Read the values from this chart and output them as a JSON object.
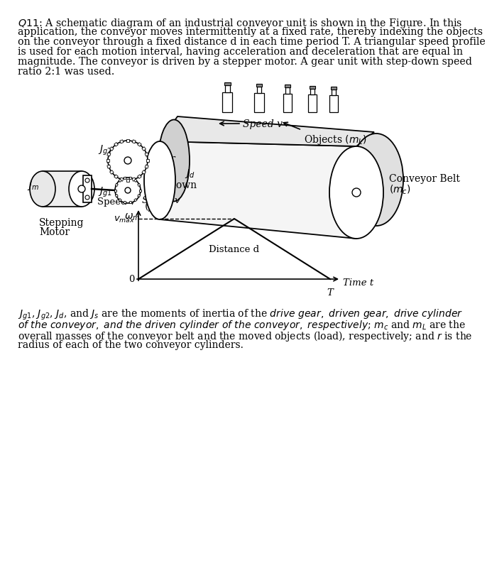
{
  "background_color": "#ffffff",
  "text_color": "#000000",
  "title_question": "Q11:",
  "paragraph_text": "A schematic diagram of an industrial conveyor unit is shown in the Figure. In this application, the conveyor moves intermittently at a fixed rate, thereby indexing the objects on the conveyor through a fixed distance d in each time period T. A triangular speed profile is used for each motion interval, having acceleration and deceleration that are equal in magnitude. The conveyor is driven by a stepper motor. A gear unit with step-down speed ratio 2:1 was used.",
  "footer_text_parts": [
    {
      "text": "J",
      "style": "italic"
    },
    {
      "text": "g1",
      "style": "sub"
    },
    {
      "text": ", ",
      "style": "normal"
    },
    {
      "text": "J",
      "style": "italic"
    },
    {
      "text": "g2",
      "style": "sub"
    },
    {
      "text": ", ",
      "style": "normal"
    },
    {
      "text": "J",
      "style": "italic"
    },
    {
      "text": "d",
      "style": "sub"
    },
    {
      "text": ", and ",
      "style": "normal"
    },
    {
      "text": "J",
      "style": "italic"
    },
    {
      "text": "s",
      "style": "sub"
    },
    {
      "text": " are the moments of inertia of the ",
      "style": "normal"
    },
    {
      "text": "drive gear, driven gear, drive cylinder of the conveyor, and the driven cylinder of the conveyor, respectively",
      "style": "italic"
    },
    {
      "text": "; ",
      "style": "normal"
    },
    {
      "text": "m",
      "style": "italic"
    },
    {
      "text": "c",
      "style": "sub_italic"
    },
    {
      "text": " and ",
      "style": "normal"
    },
    {
      "text": "m",
      "style": "italic"
    },
    {
      "text": "L",
      "style": "sub_italic"
    },
    {
      "text": " are the overall masses of the conveyor belt and the moved objects (load), respectively; and ",
      "style": "normal"
    },
    {
      "text": "r",
      "style": "italic"
    },
    {
      "text": " is the radius of each of the two conveyor cylinders.",
      "style": "normal"
    }
  ]
}
